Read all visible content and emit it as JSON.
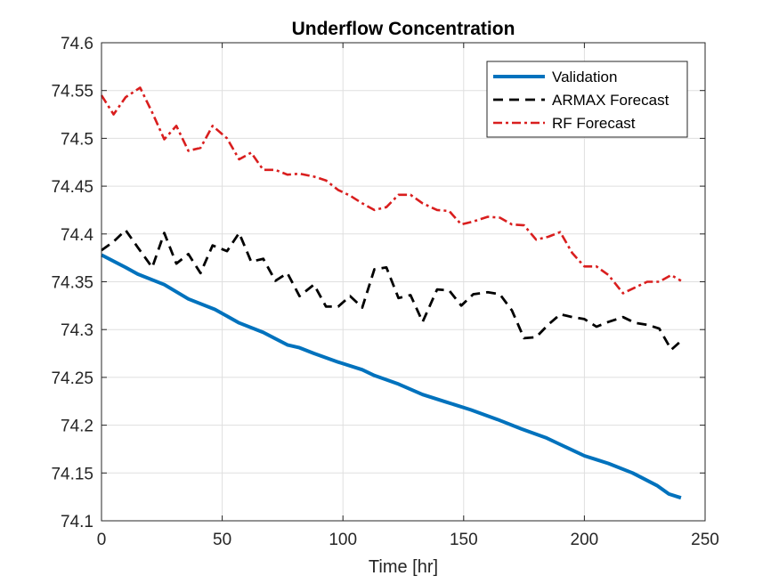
{
  "chart_data": {
    "type": "line",
    "title": "Underflow Concentration",
    "xlabel": "Time [hr]",
    "ylabel": "",
    "xlim": [
      0,
      250
    ],
    "ylim": [
      74.1,
      74.6
    ],
    "xticks": [
      0,
      50,
      100,
      150,
      200,
      250
    ],
    "yticks": [
      74.1,
      74.15,
      74.2,
      74.25,
      74.3,
      74.35,
      74.4,
      74.45,
      74.5,
      74.55,
      74.6
    ],
    "xtick_labels": [
      "0",
      "50",
      "100",
      "150",
      "200",
      "250"
    ],
    "ytick_labels": [
      "74.1",
      "74.15",
      "74.2",
      "74.25",
      "74.3",
      "74.35",
      "74.4",
      "74.45",
      "74.5",
      "74.55",
      "74.6"
    ],
    "grid": true,
    "legend_position": "top-right",
    "series": [
      {
        "name": "Validation",
        "color": "#0072BD",
        "style": "solid",
        "x": [
          0,
          10,
          15,
          26,
          36,
          47,
          57,
          67,
          77,
          82,
          88,
          98,
          108,
          113,
          123,
          133,
          143,
          153,
          164,
          174,
          184,
          189,
          200,
          205,
          210,
          220,
          230,
          235,
          240
        ],
        "y": [
          74.378,
          74.365,
          74.358,
          74.347,
          74.332,
          74.321,
          74.307,
          74.297,
          74.284,
          74.281,
          74.275,
          74.266,
          74.258,
          74.252,
          74.243,
          74.232,
          74.224,
          74.216,
          74.206,
          74.196,
          74.187,
          74.181,
          74.168,
          74.164,
          74.16,
          74.15,
          74.137,
          74.128,
          74.124
        ]
      },
      {
        "name": "ARMAX Forecast",
        "color": "#000000",
        "style": "dashed",
        "x": [
          0,
          5,
          10,
          15,
          21,
          26,
          31,
          36,
          41,
          46,
          52,
          57,
          62,
          67,
          72,
          77,
          82,
          88,
          93,
          98,
          103,
          108,
          113,
          118,
          123,
          128,
          133,
          139,
          144,
          149,
          154,
          160,
          165,
          170,
          175,
          180,
          185,
          190,
          195,
          200,
          205,
          210,
          216,
          221,
          226,
          231,
          236,
          240
        ],
        "y": [
          74.383,
          74.392,
          74.404,
          74.386,
          74.365,
          74.401,
          74.369,
          74.379,
          74.359,
          74.388,
          74.382,
          74.401,
          74.371,
          74.374,
          74.351,
          74.359,
          74.335,
          74.347,
          74.324,
          74.324,
          74.335,
          74.323,
          74.363,
          74.365,
          74.333,
          74.336,
          74.308,
          74.342,
          74.341,
          74.325,
          74.337,
          74.339,
          74.337,
          74.32,
          74.291,
          74.292,
          74.305,
          74.316,
          74.313,
          74.311,
          74.303,
          74.308,
          74.313,
          74.307,
          74.305,
          74.301,
          74.279,
          74.288
        ]
      },
      {
        "name": "RF Forecast",
        "color": "#D91E1E",
        "style": "dashdot",
        "x": [
          0,
          5,
          10,
          16,
          21,
          26,
          31,
          36,
          41,
          46,
          52,
          57,
          62,
          67,
          72,
          77,
          82,
          88,
          93,
          98,
          103,
          108,
          113,
          118,
          123,
          128,
          133,
          139,
          144,
          149,
          154,
          160,
          165,
          170,
          175,
          180,
          185,
          190,
          195,
          200,
          205,
          210,
          216,
          221,
          226,
          231,
          236,
          240
        ],
        "y": [
          74.545,
          74.525,
          74.543,
          74.553,
          74.527,
          74.499,
          74.513,
          74.487,
          74.49,
          74.513,
          74.5,
          74.478,
          74.485,
          74.467,
          74.467,
          74.462,
          74.463,
          74.46,
          74.456,
          74.446,
          74.44,
          74.432,
          74.425,
          74.428,
          74.441,
          74.441,
          74.432,
          74.425,
          74.424,
          74.41,
          74.413,
          74.418,
          74.417,
          74.41,
          74.409,
          74.394,
          74.397,
          74.402,
          74.38,
          74.366,
          74.366,
          74.357,
          74.338,
          74.344,
          74.35,
          74.35,
          74.357,
          74.351
        ]
      }
    ]
  }
}
